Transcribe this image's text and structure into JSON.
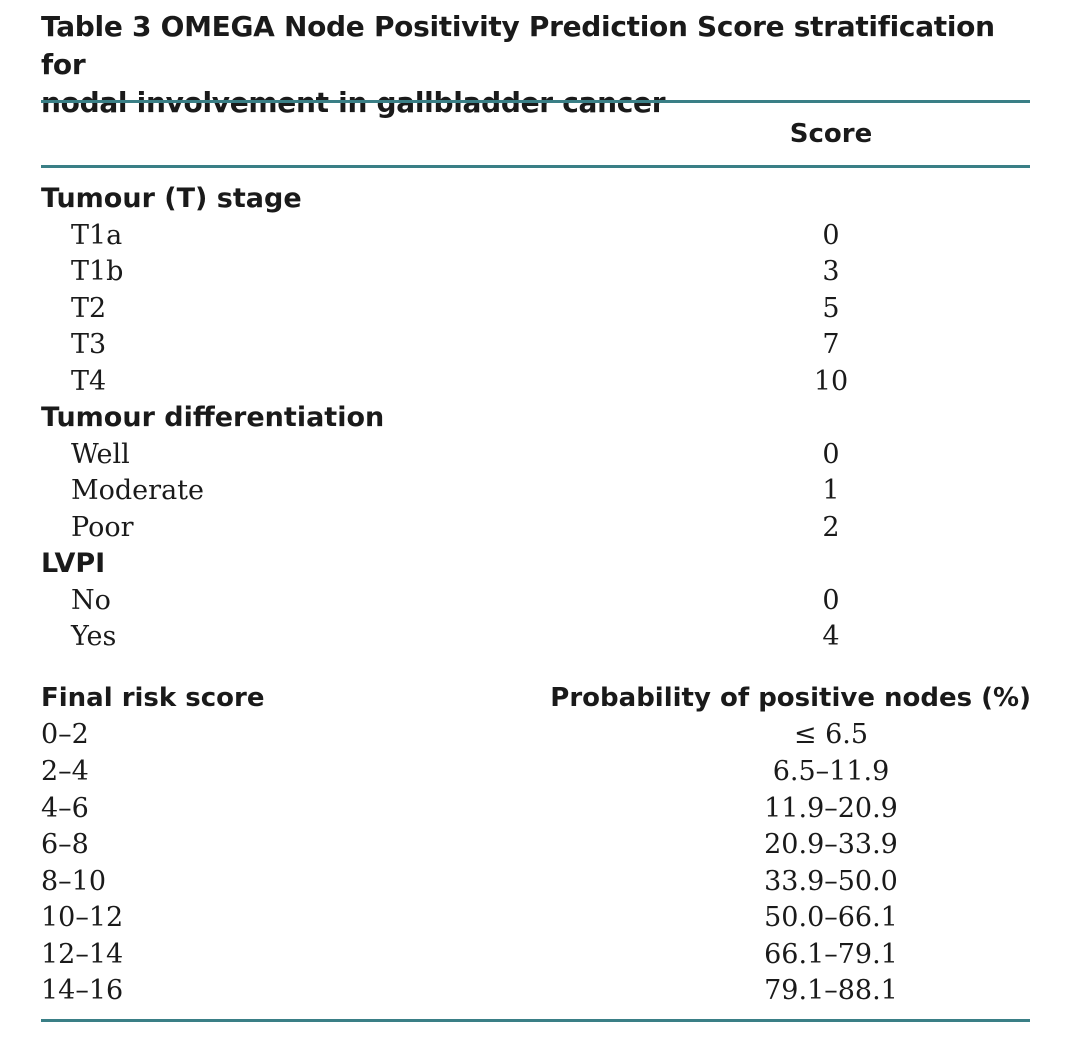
{
  "table": {
    "title_line1": "Table 3 OMEGA Node Positivity Prediction Score stratification for",
    "title_line2": "nodal involvement in gallbladder cancer",
    "score_header": "Score",
    "sections": [
      {
        "name": "Tumour (T) stage",
        "items": [
          {
            "label": "T1a",
            "score": "0"
          },
          {
            "label": "T1b",
            "score": "3"
          },
          {
            "label": "T2",
            "score": "5"
          },
          {
            "label": "T3",
            "score": "7"
          },
          {
            "label": "T4",
            "score": "10"
          }
        ]
      },
      {
        "name": "Tumour differentiation",
        "items": [
          {
            "label": "Well",
            "score": "0"
          },
          {
            "label": "Moderate",
            "score": "1"
          },
          {
            "label": "Poor",
            "score": "2"
          }
        ]
      },
      {
        "name": "LVPI",
        "items": [
          {
            "label": "No",
            "score": "0"
          },
          {
            "label": "Yes",
            "score": "4"
          }
        ]
      }
    ],
    "risk_header_left": "Final risk score",
    "risk_header_right": "Probability of positive nodes (%)",
    "risk_rows": [
      {
        "score": "0–2",
        "probability": "≤ 6.5"
      },
      {
        "score": "2–4",
        "probability": "6.5–11.9"
      },
      {
        "score": "4–6",
        "probability": "11.9–20.9"
      },
      {
        "score": "6–8",
        "probability": "20.9–33.9"
      },
      {
        "score": "8–10",
        "probability": "33.9–50.0"
      },
      {
        "score": "10–12",
        "probability": "50.0–66.1"
      },
      {
        "score": "12–14",
        "probability": "66.1–79.1"
      },
      {
        "score": "14–16",
        "probability": "79.1–88.1"
      }
    ]
  }
}
